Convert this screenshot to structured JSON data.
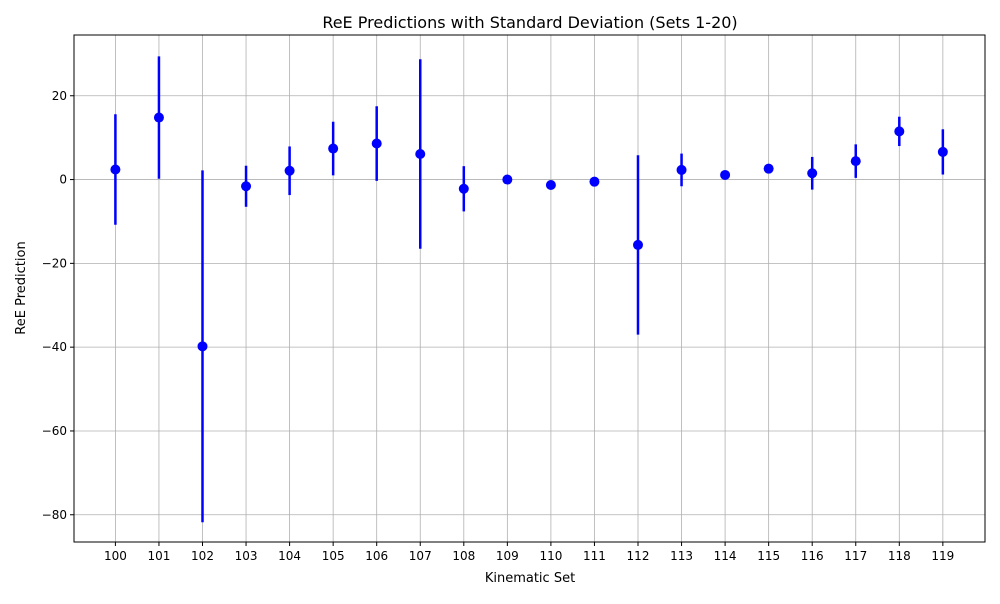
{
  "chart_data": {
    "type": "scatter",
    "title": "ReE Predictions with Standard Deviation (Sets 1-20)",
    "xlabel": "Kinematic Set",
    "ylabel": "ReE Prediction",
    "categories": [
      "100",
      "101",
      "102",
      "103",
      "104",
      "105",
      "106",
      "107",
      "108",
      "109",
      "110",
      "111",
      "112",
      "113",
      "114",
      "115",
      "116",
      "117",
      "118",
      "119"
    ],
    "values": [
      2.4,
      14.8,
      -39.8,
      -1.6,
      2.1,
      7.4,
      8.6,
      6.1,
      -2.2,
      0.0,
      -1.3,
      -0.5,
      -15.6,
      2.3,
      1.1,
      2.6,
      1.5,
      4.4,
      11.5,
      6.6
    ],
    "errors": [
      13.2,
      14.6,
      42.0,
      4.9,
      5.8,
      6.4,
      8.9,
      22.6,
      5.4,
      0.6,
      1.0,
      1.0,
      21.4,
      3.9,
      1.0,
      1.1,
      3.9,
      4.0,
      3.5,
      5.4
    ],
    "ylim": [
      -86.5,
      34.5
    ],
    "yticks": [
      20,
      0,
      -20,
      -40,
      -60,
      -80
    ],
    "ytick_labels": [
      "20",
      "0",
      "−20",
      "−40",
      "−60",
      "−80"
    ],
    "grid": true,
    "marker_color": "#0000ff"
  }
}
